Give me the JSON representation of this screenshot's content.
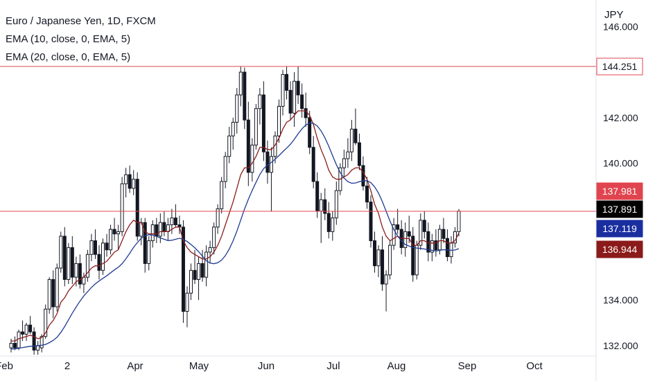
{
  "legend": {
    "title": "Euro / Japanese Yen, 1D, FXCM",
    "ema1": "EMA (10, close, 0, EMA, 5)",
    "ema2": "EMA (20, close, 0, EMA, 5)"
  },
  "colors": {
    "up": "#131722",
    "down": "#131722",
    "ema10": "#8b1a1a",
    "ema20": "#1f3a93",
    "hline": "#e0454f",
    "bg": "#ffffff"
  },
  "chart_data": {
    "type": "candlestick",
    "symbol": "EURJPY",
    "currency_label": "JPY",
    "y_range": [
      131.6,
      146.8
    ],
    "y_ticks": [
      "132.000",
      "134.000",
      "140.000",
      "142.000",
      "146.000"
    ],
    "x_labels": [
      "Feb",
      "2",
      "Apr",
      "May",
      "Jun",
      "Jul",
      "Aug",
      "Sep",
      "Oct"
    ],
    "horizontal_lines": [
      144.251,
      137.891
    ],
    "price_labels": [
      {
        "value": "144.251",
        "bg": "#ffffff",
        "fg": "#131722",
        "border": "#e0454f"
      },
      {
        "value": "137.981",
        "bg": "#e0454f",
        "fg": "#ffffff",
        "border": "#e0454f"
      },
      {
        "value": "137.891",
        "bg": "#000000",
        "fg": "#ffffff",
        "border": "#000000"
      },
      {
        "value": "137.119",
        "bg": "#1a2ea0",
        "fg": "#ffffff",
        "border": "#1a2ea0"
      },
      {
        "value": "136.944",
        "bg": "#8b1a1a",
        "fg": "#ffffff",
        "border": "#8b1a1a"
      }
    ],
    "candles_ohlc": [
      [
        131.9,
        132.3,
        131.7,
        132.1
      ],
      [
        132.1,
        132.4,
        131.8,
        131.9
      ],
      [
        131.9,
        132.7,
        131.8,
        132.6
      ],
      [
        132.6,
        133.1,
        132.2,
        132.5
      ],
      [
        132.5,
        133.0,
        132.2,
        132.9
      ],
      [
        132.9,
        133.3,
        132.5,
        132.6
      ],
      [
        132.6,
        132.8,
        131.6,
        131.8
      ],
      [
        131.8,
        132.2,
        131.6,
        132.0
      ],
      [
        131.9,
        132.5,
        131.7,
        132.4
      ],
      [
        132.4,
        133.8,
        132.3,
        133.6
      ],
      [
        133.6,
        135.0,
        133.4,
        134.9
      ],
      [
        134.9,
        135.3,
        133.2,
        133.7
      ],
      [
        133.7,
        135.6,
        133.5,
        135.4
      ],
      [
        135.4,
        137.0,
        135.2,
        136.8
      ],
      [
        136.8,
        137.2,
        134.6,
        134.9
      ],
      [
        134.9,
        136.5,
        134.7,
        136.3
      ],
      [
        136.3,
        136.8,
        134.7,
        135.0
      ],
      [
        135.0,
        135.9,
        134.6,
        135.6
      ],
      [
        135.6,
        136.0,
        134.5,
        134.7
      ],
      [
        134.7,
        135.2,
        134.3,
        135.0
      ],
      [
        135.0,
        136.2,
        134.8,
        136.0
      ],
      [
        136.0,
        136.9,
        135.7,
        136.6
      ],
      [
        136.6,
        137.1,
        135.8,
        136.0
      ],
      [
        136.0,
        136.4,
        134.9,
        135.3
      ],
      [
        135.3,
        136.7,
        135.1,
        136.5
      ],
      [
        136.5,
        136.9,
        135.9,
        136.2
      ],
      [
        136.2,
        137.3,
        136.0,
        137.1
      ],
      [
        137.1,
        137.6,
        136.6,
        136.9
      ],
      [
        136.9,
        137.3,
        136.2,
        137.0
      ],
      [
        137.0,
        139.4,
        136.8,
        139.1
      ],
      [
        139.1,
        139.8,
        138.5,
        139.5
      ],
      [
        139.5,
        139.9,
        138.7,
        138.9
      ],
      [
        138.9,
        139.7,
        138.6,
        139.3
      ],
      [
        139.3,
        139.6,
        136.6,
        136.8
      ],
      [
        136.8,
        137.6,
        136.4,
        137.4
      ],
      [
        137.4,
        137.6,
        135.2,
        135.6
      ],
      [
        135.6,
        136.8,
        135.3,
        136.6
      ],
      [
        136.6,
        137.5,
        136.3,
        137.3
      ],
      [
        137.3,
        137.6,
        136.5,
        136.8
      ],
      [
        136.8,
        137.8,
        136.5,
        137.4
      ],
      [
        137.4,
        137.9,
        136.8,
        137.0
      ],
      [
        137.0,
        137.6,
        136.6,
        137.3
      ],
      [
        137.3,
        138.0,
        136.9,
        137.6
      ],
      [
        137.6,
        138.2,
        137.2,
        137.3
      ],
      [
        137.3,
        137.7,
        136.9,
        137.2
      ],
      [
        137.2,
        137.5,
        133.0,
        133.5
      ],
      [
        133.5,
        134.6,
        132.8,
        134.3
      ],
      [
        134.3,
        135.6,
        134.0,
        135.3
      ],
      [
        135.3,
        136.2,
        134.7,
        134.9
      ],
      [
        134.9,
        135.9,
        134.0,
        135.6
      ],
      [
        135.6,
        136.2,
        134.8,
        135.0
      ],
      [
        135.0,
        136.4,
        134.6,
        136.1
      ],
      [
        136.1,
        136.6,
        135.6,
        136.3
      ],
      [
        136.3,
        137.4,
        136.0,
        137.2
      ],
      [
        137.2,
        138.2,
        136.9,
        138.0
      ],
      [
        138.0,
        139.4,
        137.8,
        139.2
      ],
      [
        139.2,
        140.5,
        138.9,
        140.3
      ],
      [
        140.3,
        141.6,
        140.0,
        141.2
      ],
      [
        141.2,
        142.0,
        140.6,
        141.8
      ],
      [
        141.8,
        143.3,
        141.3,
        143.0
      ],
      [
        143.0,
        144.25,
        142.5,
        144.0
      ],
      [
        144.0,
        144.2,
        141.5,
        141.9
      ],
      [
        141.9,
        142.7,
        139.0,
        139.6
      ],
      [
        139.6,
        141.1,
        139.2,
        140.8
      ],
      [
        140.8,
        142.6,
        140.6,
        142.4
      ],
      [
        142.4,
        143.3,
        141.7,
        143.0
      ],
      [
        143.0,
        143.6,
        140.1,
        140.5
      ],
      [
        140.5,
        141.0,
        139.1,
        139.6
      ],
      [
        139.6,
        140.7,
        137.9,
        140.3
      ],
      [
        140.3,
        141.4,
        140.0,
        141.2
      ],
      [
        141.2,
        142.8,
        140.9,
        142.5
      ],
      [
        142.5,
        144.1,
        142.1,
        143.9
      ],
      [
        143.9,
        144.25,
        142.8,
        143.2
      ],
      [
        143.2,
        143.6,
        141.9,
        142.2
      ],
      [
        142.2,
        144.0,
        141.6,
        143.6
      ],
      [
        143.6,
        144.25,
        142.6,
        143.0
      ],
      [
        143.0,
        143.5,
        142.0,
        142.4
      ],
      [
        142.4,
        143.1,
        141.6,
        142.0
      ],
      [
        142.0,
        142.3,
        140.4,
        140.7
      ],
      [
        140.7,
        141.2,
        138.9,
        139.2
      ],
      [
        139.2,
        139.6,
        137.6,
        137.9
      ],
      [
        137.9,
        138.7,
        136.5,
        138.4
      ],
      [
        138.4,
        138.9,
        137.5,
        137.8
      ],
      [
        137.8,
        138.3,
        136.7,
        137.0
      ],
      [
        137.0,
        137.9,
        136.6,
        137.6
      ],
      [
        137.6,
        139.2,
        137.3,
        138.8
      ],
      [
        138.8,
        140.0,
        138.6,
        139.8
      ],
      [
        139.8,
        140.6,
        139.4,
        140.2
      ],
      [
        140.2,
        141.1,
        139.8,
        140.5
      ],
      [
        140.5,
        141.9,
        140.1,
        141.5
      ],
      [
        141.5,
        142.4,
        140.8,
        140.9
      ],
      [
        140.9,
        141.3,
        139.7,
        139.9
      ],
      [
        139.9,
        140.3,
        138.8,
        139.0
      ],
      [
        139.0,
        139.4,
        138.0,
        138.3
      ],
      [
        138.3,
        138.6,
        136.3,
        136.6
      ],
      [
        136.6,
        137.0,
        135.2,
        135.5
      ],
      [
        135.5,
        136.4,
        135.0,
        136.2
      ],
      [
        136.2,
        136.8,
        134.4,
        134.7
      ],
      [
        134.7,
        135.3,
        133.5,
        135.1
      ],
      [
        135.1,
        136.6,
        134.9,
        136.4
      ],
      [
        136.4,
        137.6,
        136.2,
        137.3
      ],
      [
        137.3,
        138.0,
        136.9,
        137.1
      ],
      [
        137.1,
        137.5,
        136.0,
        136.3
      ],
      [
        136.3,
        137.4,
        135.9,
        137.0
      ],
      [
        137.0,
        137.7,
        136.5,
        136.8
      ],
      [
        136.8,
        137.2,
        134.8,
        135.1
      ],
      [
        135.1,
        136.6,
        134.9,
        136.4
      ],
      [
        136.4,
        137.8,
        136.2,
        137.5
      ],
      [
        137.5,
        137.9,
        136.7,
        137.0
      ],
      [
        137.0,
        137.4,
        135.7,
        136.1
      ],
      [
        136.1,
        136.9,
        135.7,
        136.6
      ],
      [
        136.6,
        137.1,
        135.9,
        136.2
      ],
      [
        136.2,
        137.3,
        136.0,
        137.1
      ],
      [
        137.1,
        137.6,
        136.5,
        136.7
      ],
      [
        136.7,
        137.1,
        135.7,
        135.9
      ],
      [
        135.9,
        136.8,
        135.6,
        136.5
      ],
      [
        136.5,
        137.2,
        136.3,
        137.0
      ],
      [
        137.0,
        137.99,
        136.8,
        137.9
      ]
    ],
    "ema10": [
      132.2,
      132.2,
      132.3,
      132.35,
      132.4,
      132.45,
      132.4,
      132.3,
      132.35,
      132.55,
      132.9,
      133.1,
      133.4,
      133.9,
      134.1,
      134.4,
      134.6,
      134.8,
      134.9,
      135.0,
      135.2,
      135.4,
      135.5,
      135.5,
      135.6,
      135.7,
      135.9,
      136.1,
      136.2,
      136.6,
      137.0,
      137.3,
      137.5,
      137.4,
      137.4,
      137.0,
      136.9,
      136.9,
      136.9,
      137.0,
      137.0,
      137.0,
      137.1,
      137.2,
      137.2,
      136.6,
      136.3,
      136.1,
      136.0,
      135.9,
      135.8,
      135.8,
      135.9,
      136.1,
      136.4,
      136.8,
      137.3,
      137.8,
      138.3,
      138.9,
      139.5,
      139.8,
      139.8,
      140.0,
      140.3,
      140.7,
      140.7,
      140.6,
      140.6,
      140.8,
      141.1,
      141.5,
      141.8,
      141.9,
      142.1,
      142.3,
      142.3,
      142.3,
      142.1,
      141.7,
      141.1,
      140.6,
      140.2,
      139.7,
      139.4,
      139.3,
      139.3,
      139.4,
      139.5,
      139.7,
      139.8,
      139.8,
      139.6,
      139.3,
      138.8,
      138.2,
      137.8,
      137.2,
      136.8,
      136.6,
      136.7,
      136.8,
      136.7,
      136.7,
      136.7,
      136.4,
      136.4,
      136.6,
      136.6,
      136.5,
      136.5,
      136.5,
      136.6,
      136.6,
      136.5,
      136.5,
      136.6,
      136.94
    ]
  }
}
